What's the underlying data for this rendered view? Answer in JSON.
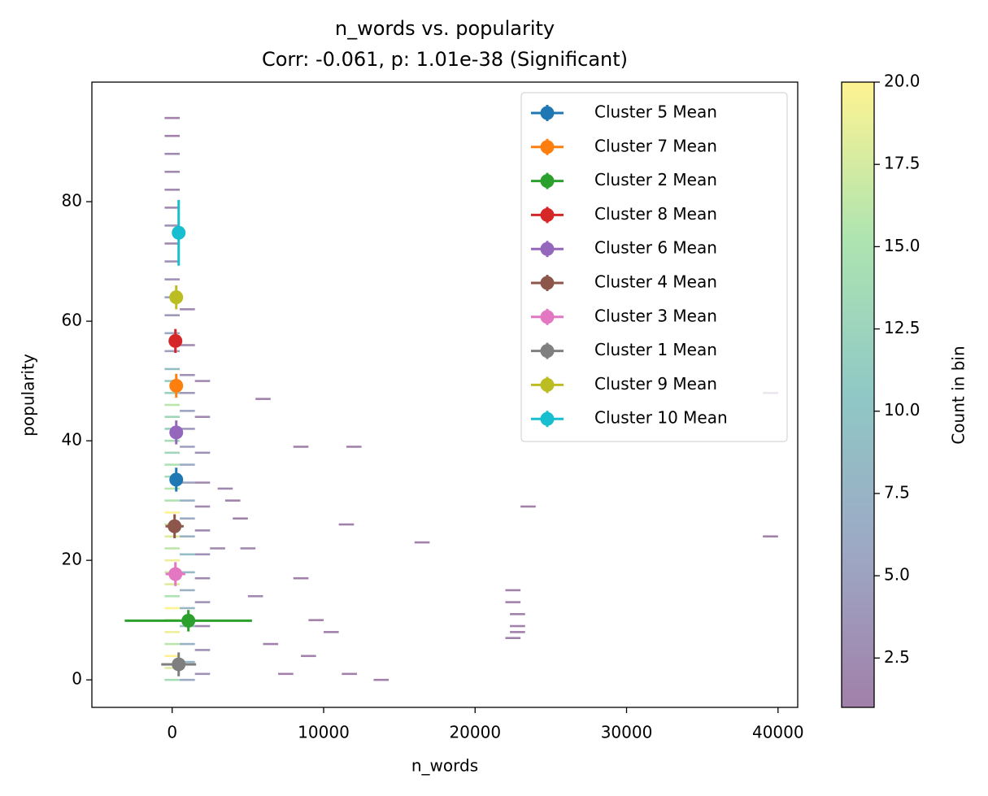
{
  "chart_data": {
    "type": "errorbar",
    "title": "n_words vs. popularity",
    "subtitle": "Corr: -0.061, p: 1.01e-38 (Significant)",
    "x_label": "n_words",
    "y_label": "popularity",
    "xlim": [
      -5300,
      41300
    ],
    "ylim": [
      -4.6,
      100
    ],
    "xticks": [
      0,
      10000,
      20000,
      30000,
      40000
    ],
    "yticks": [
      0,
      20,
      40,
      60,
      80
    ],
    "legend": "upper right",
    "series": [
      {
        "name": "Cluster 5 Mean",
        "color": "#1f77b4",
        "x": [
          270
        ],
        "y": [
          33.5
        ],
        "xerr": [
          300
        ],
        "yerr": [
          2
        ]
      },
      {
        "name": "Cluster 7 Mean",
        "color": "#ff7f0e",
        "x": [
          270
        ],
        "y": [
          49.2
        ],
        "xerr": [
          300
        ],
        "yerr": [
          2
        ]
      },
      {
        "name": "Cluster 2 Mean",
        "color": "#2ca02c",
        "x": [
          1070
        ],
        "y": [
          9.9
        ],
        "xerr": [
          4200
        ],
        "yerr": [
          1.8
        ]
      },
      {
        "name": "Cluster 8 Mean",
        "color": "#d62728",
        "x": [
          215
        ],
        "y": [
          56.7
        ],
        "xerr": [
          250
        ],
        "yerr": [
          2
        ]
      },
      {
        "name": "Cluster 6 Mean",
        "color": "#9467bd",
        "x": [
          270
        ],
        "y": [
          41.4
        ],
        "xerr": [
          300
        ],
        "yerr": [
          2
        ]
      },
      {
        "name": "Cluster 4 Mean",
        "color": "#8c564b",
        "x": [
          160
        ],
        "y": [
          25.7
        ],
        "xerr": [
          600
        ],
        "yerr": [
          2
        ]
      },
      {
        "name": "Cluster 3 Mean",
        "color": "#e377c2",
        "x": [
          216
        ],
        "y": [
          17.7
        ],
        "xerr": [
          650
        ],
        "yerr": [
          2
        ]
      },
      {
        "name": "Cluster 1 Mean",
        "color": "#7f7f7f",
        "x": [
          430
        ],
        "y": [
          2.6
        ],
        "xerr": [
          1150
        ],
        "yerr": [
          2
        ]
      },
      {
        "name": "Cluster 9 Mean",
        "color": "#bcbd22",
        "x": [
          270
        ],
        "y": [
          64.0
        ],
        "xerr": [
          300
        ],
        "yerr": [
          2
        ]
      },
      {
        "name": "Cluster 10 Mean",
        "color": "#17becf",
        "x": [
          430
        ],
        "y": [
          74.8
        ],
        "xerr": [
          300
        ],
        "yerr": [
          5.5
        ]
      }
    ],
    "histogram2d": {
      "x_bin_width": 1000,
      "y_bin_height": 0.35,
      "cells": [
        [
          0,
          0,
          14
        ],
        [
          0,
          2,
          18
        ],
        [
          0,
          4,
          20
        ],
        [
          0,
          6,
          16
        ],
        [
          0,
          8,
          19
        ],
        [
          0,
          10,
          17
        ],
        [
          0,
          12,
          20
        ],
        [
          0,
          14,
          15
        ],
        [
          0,
          16,
          18
        ],
        [
          0,
          18,
          17
        ],
        [
          0,
          20,
          19
        ],
        [
          0,
          22,
          16
        ],
        [
          0,
          24,
          18
        ],
        [
          0,
          26,
          17
        ],
        [
          0,
          28,
          20
        ],
        [
          0,
          30,
          15
        ],
        [
          0,
          32,
          16
        ],
        [
          0,
          34,
          14
        ],
        [
          0,
          36,
          15
        ],
        [
          0,
          38,
          13
        ],
        [
          0,
          40,
          14
        ],
        [
          0,
          42,
          12
        ],
        [
          0,
          44,
          13
        ],
        [
          0,
          46,
          16
        ],
        [
          0,
          48,
          12
        ],
        [
          0,
          50,
          11
        ],
        [
          0,
          52,
          9
        ],
        [
          0,
          55,
          5
        ],
        [
          0,
          58,
          6
        ],
        [
          0,
          61,
          4
        ],
        [
          0,
          64,
          5
        ],
        [
          0,
          67,
          3
        ],
        [
          0,
          70,
          3
        ],
        [
          0,
          73,
          2
        ],
        [
          0,
          76,
          3
        ],
        [
          0,
          79,
          2
        ],
        [
          0,
          82,
          2
        ],
        [
          0,
          85,
          2
        ],
        [
          0,
          88,
          2
        ],
        [
          0,
          91,
          1
        ],
        [
          0,
          94,
          1
        ],
        [
          1000,
          0,
          6
        ],
        [
          1000,
          3,
          8
        ],
        [
          1000,
          6,
          7
        ],
        [
          1000,
          9,
          9
        ],
        [
          1000,
          12,
          8
        ],
        [
          1000,
          15,
          7
        ],
        [
          1000,
          18,
          8
        ],
        [
          1000,
          21,
          9
        ],
        [
          1000,
          24,
          7
        ],
        [
          1000,
          27,
          6
        ],
        [
          1000,
          30,
          7
        ],
        [
          1000,
          33,
          5
        ],
        [
          1000,
          36,
          6
        ],
        [
          1000,
          39,
          5
        ],
        [
          1000,
          42,
          4
        ],
        [
          1000,
          45,
          5
        ],
        [
          1000,
          48,
          4
        ],
        [
          1000,
          51,
          3
        ],
        [
          1000,
          56,
          2
        ],
        [
          1000,
          62,
          2
        ],
        [
          2000,
          1,
          3
        ],
        [
          2000,
          5,
          3
        ],
        [
          2000,
          9,
          2
        ],
        [
          2000,
          13,
          3
        ],
        [
          2000,
          17,
          2
        ],
        [
          2000,
          21,
          3
        ],
        [
          2000,
          25,
          2
        ],
        [
          2000,
          29,
          2
        ],
        [
          2000,
          33,
          2
        ],
        [
          2000,
          38,
          3
        ],
        [
          2000,
          44,
          2
        ],
        [
          2000,
          50,
          2
        ],
        [
          4000,
          30,
          1
        ],
        [
          5000,
          22,
          2
        ],
        [
          8500,
          39,
          1
        ],
        [
          12000,
          39,
          1
        ],
        [
          6000,
          47,
          1
        ],
        [
          22500,
          15,
          1
        ],
        [
          22500,
          13,
          1
        ],
        [
          22800,
          11,
          1
        ],
        [
          22800,
          9,
          1
        ],
        [
          22800,
          8,
          1
        ],
        [
          22500,
          7,
          1
        ],
        [
          23500,
          29,
          1
        ],
        [
          16500,
          23,
          1
        ],
        [
          11500,
          26,
          1
        ],
        [
          39500,
          24,
          1
        ],
        [
          39500,
          48,
          1
        ],
        [
          13800,
          0,
          1
        ],
        [
          11700,
          1,
          1
        ],
        [
          9000,
          4,
          1
        ],
        [
          7500,
          1,
          1
        ],
        [
          10500,
          8,
          1
        ],
        [
          8500,
          17,
          1
        ],
        [
          9500,
          10,
          1
        ],
        [
          5500,
          14,
          2
        ],
        [
          3500,
          32,
          2
        ],
        [
          3000,
          22,
          2
        ],
        [
          4500,
          27,
          1
        ],
        [
          6500,
          6,
          1
        ]
      ]
    },
    "colorbar": {
      "label": "Count in bin",
      "lim": [
        1,
        20
      ],
      "ticks": [
        2.5,
        {
          "value": 5,
          "label": "5.0"
        },
        7.5,
        {
          "value": 10,
          "label": "10.0"
        },
        12.5,
        {
          "value": 15,
          "label": "15.0"
        },
        17.5,
        {
          "value": 20,
          "label": "20.0"
        }
      ]
    }
  }
}
